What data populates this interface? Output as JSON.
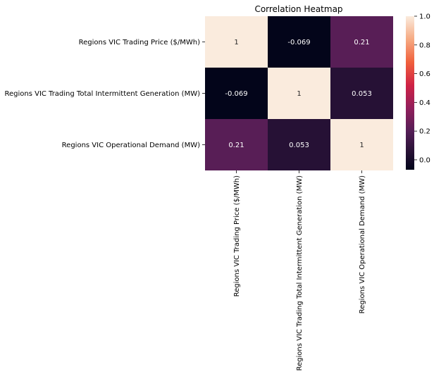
{
  "chart_data": {
    "type": "heatmap",
    "title": "Correlation Heatmap",
    "row_labels": [
      "Regions VIC Trading Price ($/MWh)",
      "Regions VIC Trading Total Intermittent Generation (MW)",
      "Regions VIC Operational Demand (MW)"
    ],
    "col_labels": [
      "Regions VIC Trading Price ($/MWh)",
      "Regions VIC Trading Total Intermittent Generation (MW)",
      "Regions VIC Operational Demand (MW)"
    ],
    "values": [
      [
        1,
        -0.069,
        0.21
      ],
      [
        -0.069,
        1,
        0.053
      ],
      [
        0.21,
        0.053,
        1
      ]
    ],
    "annotations": [
      [
        "1",
        "-0.069",
        "0.21"
      ],
      [
        "-0.069",
        "1",
        "0.053"
      ],
      [
        "0.21",
        "0.053",
        "1"
      ]
    ],
    "colorbar": {
      "range": [
        -0.069,
        1
      ],
      "ticks": [
        0.0,
        0.2,
        0.4,
        0.6,
        0.8,
        1.0
      ],
      "tick_labels": [
        "0.0",
        "0.2",
        "0.4",
        "0.6",
        "0.8",
        "1.0"
      ],
      "colormap": "rocket"
    }
  }
}
